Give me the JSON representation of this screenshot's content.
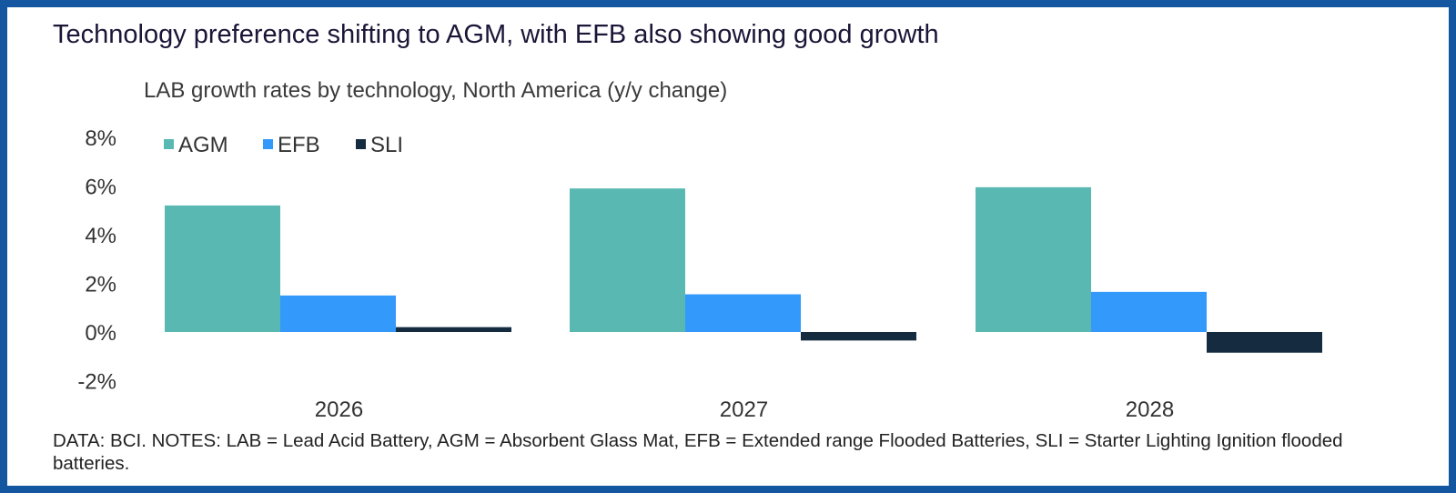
{
  "title": "Technology preference shifting to AGM, with EFB also showing good growth",
  "notes": "DATA: BCI. NOTES: LAB = Lead Acid Battery, AGM = Absorbent Glass Mat, EFB = Extended range Flooded Batteries, SLI = Starter Lighting Ignition flooded batteries.",
  "chart_data": {
    "type": "bar",
    "title": "LAB growth rates by technology, North America (y/y change)",
    "xlabel": "",
    "ylabel": "",
    "categories": [
      "2026",
      "2027",
      "2028"
    ],
    "series": [
      {
        "name": "AGM",
        "color": "#5ab8b2",
        "values": [
          5.2,
          5.9,
          5.95
        ]
      },
      {
        "name": "EFB",
        "color": "#3399fb",
        "values": [
          1.5,
          1.55,
          1.65
        ]
      },
      {
        "name": "SLI",
        "color": "#142b40",
        "values": [
          0.2,
          -0.35,
          -0.85
        ]
      }
    ],
    "ylim": [
      -2,
      8
    ],
    "yticks": [
      8,
      6,
      4,
      2,
      0,
      -2
    ],
    "ytick_labels": [
      "8%",
      "6%",
      "4%",
      "2%",
      "0%",
      "-2%"
    ],
    "grid": false,
    "legend_position": "top-left"
  }
}
